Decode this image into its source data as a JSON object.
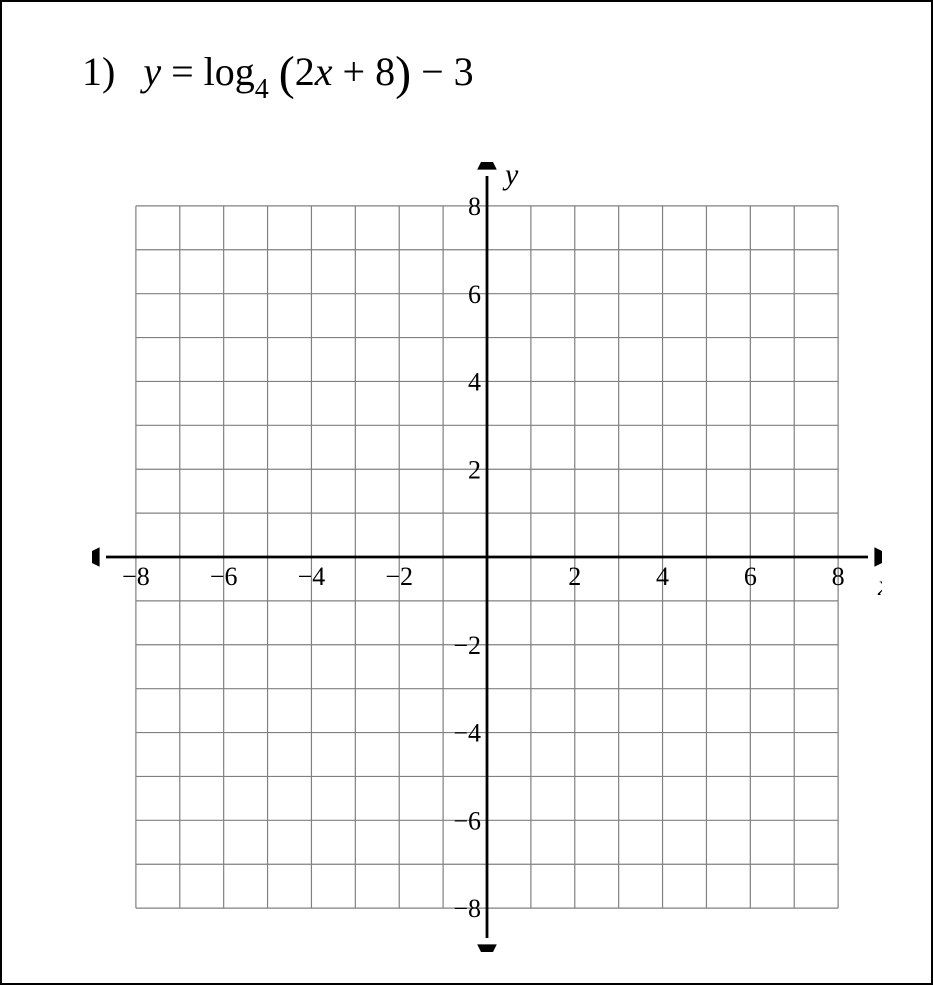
{
  "problem_number": "1)",
  "equation": {
    "lhs_var": "y",
    "eq": " = ",
    "func": "log",
    "base": "4",
    "open_paren": "(",
    "inner_coef": "2",
    "inner_var": "x",
    "inner_op": " + 8",
    "close_paren": ")",
    "tail": " − 3"
  },
  "chart": {
    "type": "cartesian-grid",
    "xlim": [
      -9,
      9
    ],
    "ylim": [
      -9,
      9
    ],
    "grid_min": -8,
    "grid_max": 8,
    "grid_step": 1,
    "tick_step": 2,
    "x_ticks": {
      "-8": "−8",
      "-6": "−6",
      "-4": "−4",
      "-2": "−2",
      "2": "2",
      "4": "4",
      "6": "6",
      "8": "8"
    },
    "y_ticks": {
      "8": "8",
      "6": "6",
      "4": "4",
      "2": "2",
      "-2": "−2",
      "-4": "−4",
      "-6": "−6",
      "-8": "−8"
    },
    "x_axis_label": "x",
    "y_axis_label": "y",
    "grid_color": "#808080",
    "axis_color": "#000000",
    "background_color": "#ffffff",
    "tick_fontsize": 26,
    "axislabel_fontsize": 30,
    "svg_size": 790,
    "arrow_size": 14
  }
}
